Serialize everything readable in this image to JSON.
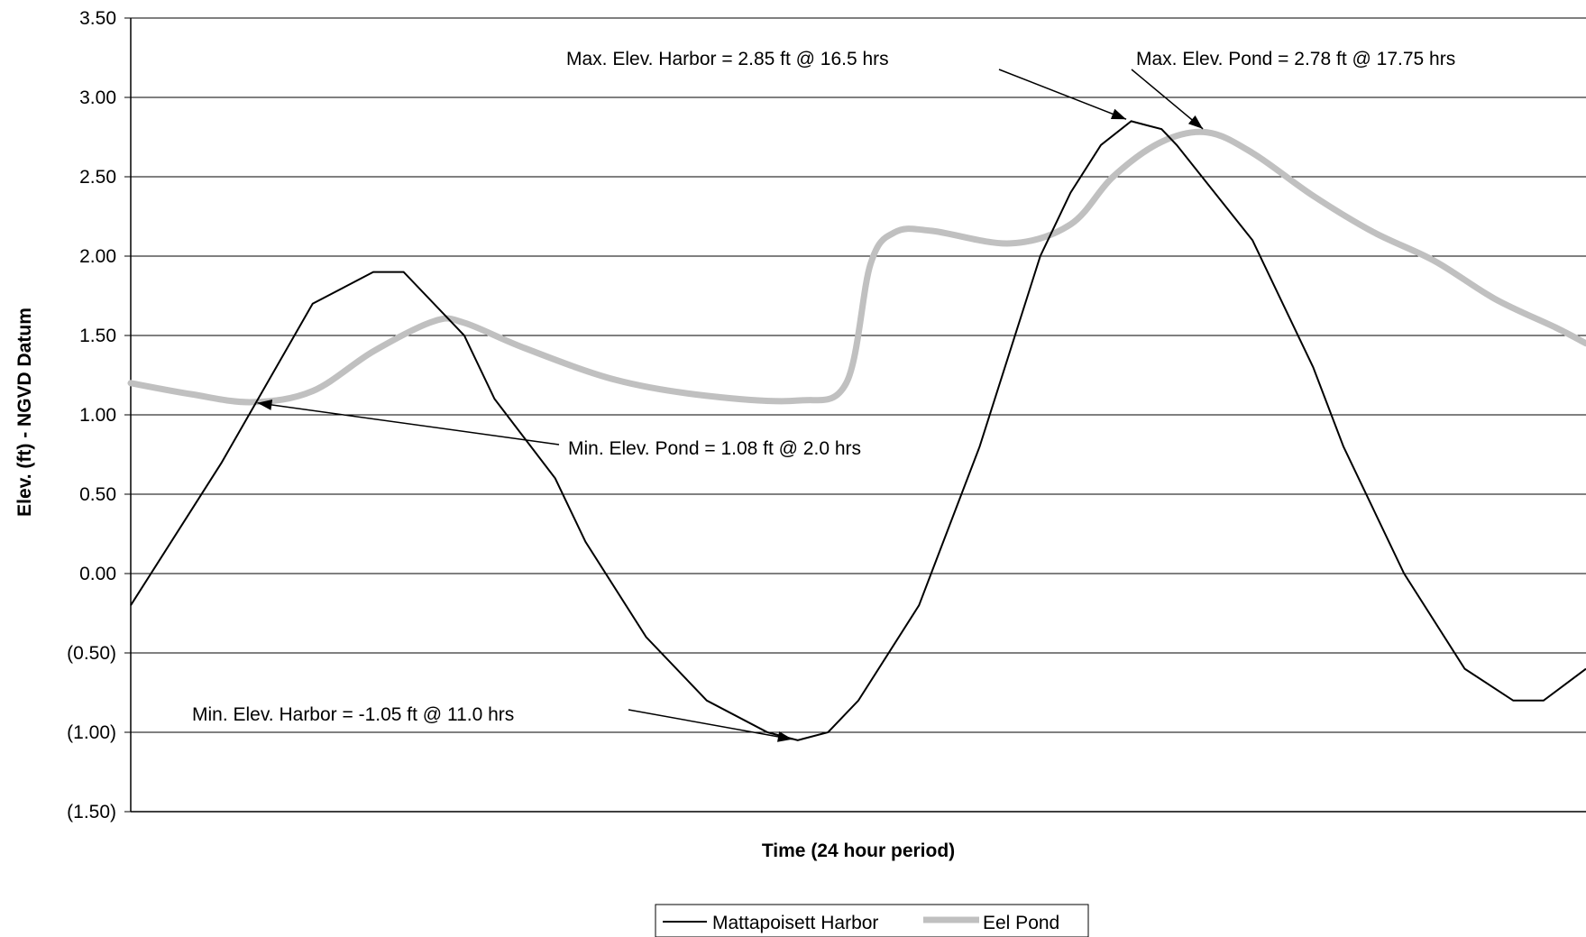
{
  "chart_data": {
    "type": "line",
    "title": "",
    "xlabel": "Time (24 hour period)",
    "ylabel": "Elev. (ft) - NGVD Datum",
    "ylim": [
      -1.5,
      3.5
    ],
    "xlim": [
      0,
      24
    ],
    "y_tick_labels": [
      "(1.50)",
      "(1.00)",
      "(0.50)",
      "0.00",
      "0.50",
      "1.00",
      "1.50",
      "2.00",
      "2.50",
      "3.00",
      "3.50"
    ],
    "y_tick_values": [
      -1.5,
      -1.0,
      -0.5,
      0.0,
      0.5,
      1.0,
      1.5,
      2.0,
      2.5,
      3.0,
      3.5
    ],
    "grid": true,
    "legend_position": "bottom-center",
    "series": [
      {
        "name": "Mattapoisett Harbor",
        "color": "#000000",
        "x": [
          0,
          1.5,
          3.0,
          4.0,
          4.5,
          5.5,
          6.0,
          7.0,
          7.5,
          8.5,
          9.5,
          10.5,
          11.0,
          11.5,
          12.0,
          13.0,
          14.0,
          15.0,
          15.5,
          16.0,
          16.5,
          17.0,
          17.25,
          18.5,
          19.5,
          20.0,
          21.0,
          22.0,
          22.8,
          23.3,
          24.0
        ],
        "y": [
          -0.2,
          0.7,
          1.7,
          1.9,
          1.9,
          1.5,
          1.1,
          0.6,
          0.2,
          -0.4,
          -0.8,
          -1.0,
          -1.05,
          -1.0,
          -0.8,
          -0.2,
          0.8,
          2.0,
          2.4,
          2.7,
          2.85,
          2.8,
          2.7,
          2.1,
          1.3,
          0.8,
          0.0,
          -0.6,
          -0.8,
          -0.8,
          -0.6
        ]
      },
      {
        "name": "Eel Pond",
        "color": "#c0c0c0",
        "x": [
          0,
          1.0,
          2.0,
          3.0,
          4.0,
          5.0,
          5.5,
          6.5,
          8.0,
          9.5,
          11.0,
          11.8,
          12.2,
          12.6,
          13.2,
          14.5,
          15.5,
          16.2,
          17.0,
          17.75,
          18.5,
          19.5,
          20.5,
          21.5,
          22.5,
          23.5,
          24.0
        ],
        "y": [
          1.2,
          1.13,
          1.08,
          1.15,
          1.4,
          1.59,
          1.58,
          1.42,
          1.22,
          1.12,
          1.09,
          1.2,
          1.95,
          2.15,
          2.16,
          2.08,
          2.2,
          2.5,
          2.72,
          2.78,
          2.65,
          2.38,
          2.15,
          1.97,
          1.73,
          1.55,
          1.45
        ]
      }
    ],
    "annotations": [
      {
        "text": "Max. Elev. Harbor = 2.85 ft @ 16.5 hrs",
        "target_x": 16.5,
        "target_y": 2.85
      },
      {
        "text": "Max. Elev. Pond = 2.78 ft @ 17.75 hrs",
        "target_x": 17.75,
        "target_y": 2.78
      },
      {
        "text": "Min. Elev. Pond = 1.08 ft @ 2.0  hrs",
        "target_x": 2.0,
        "target_y": 1.08
      },
      {
        "text": "Min. Elev. Harbor = -1.05 ft @ 11.0 hrs",
        "target_x": 11.0,
        "target_y": -1.05
      }
    ]
  }
}
